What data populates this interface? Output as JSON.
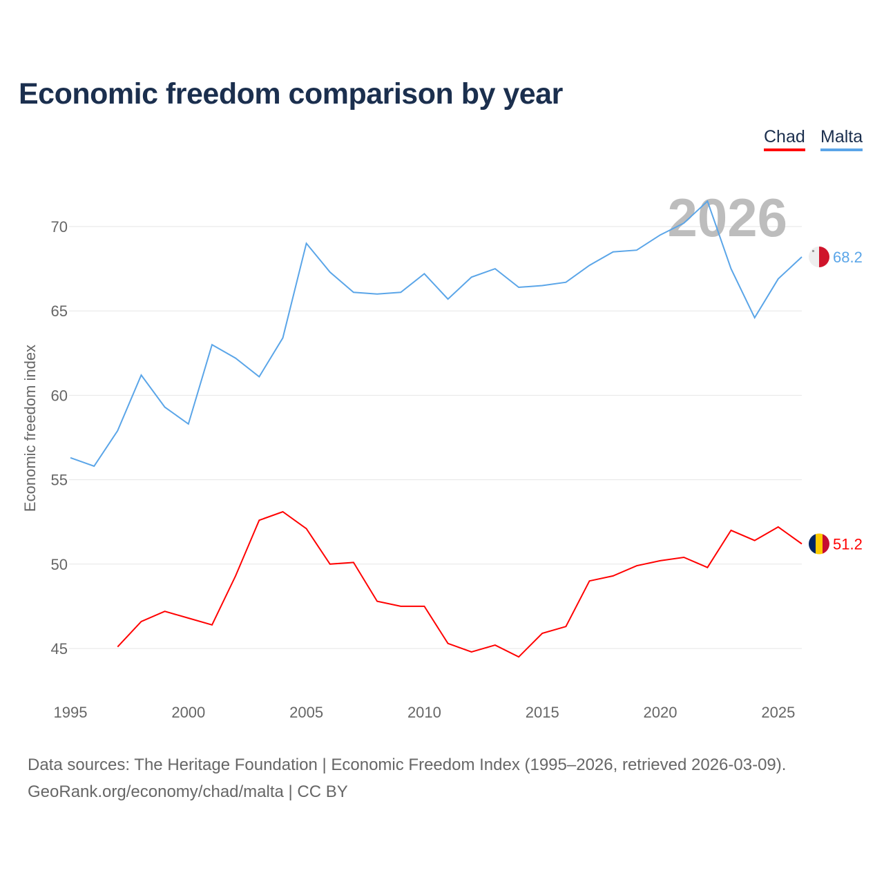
{
  "title": "Economic freedom comparison by year",
  "footer": {
    "line1": "Data sources: The Heritage Foundation | Economic Freedom Index (1995–2026, retrieved 2026-03-09).",
    "line2": "GeoRank.org/economy/chad/malta | CC BY"
  },
  "chart_data": {
    "type": "line",
    "title": "Economic freedom comparison by year",
    "xlabel": "",
    "ylabel": "Economic freedom index",
    "xlim": [
      1995,
      2026
    ],
    "ylim": [
      45,
      70
    ],
    "x_ticks": [
      "1995",
      "2000",
      "2005",
      "2010",
      "2015",
      "2020",
      "2025"
    ],
    "y_ticks": [
      "45",
      "50",
      "55",
      "60",
      "65",
      "70"
    ],
    "year_watermark": "2026",
    "legend_position": "top-right",
    "series": [
      {
        "name": "Chad",
        "color": "#ff0000",
        "end_label": "51.2",
        "flag": "chad-flag",
        "x": [
          1997,
          1998,
          1999,
          2000,
          2001,
          2002,
          2003,
          2004,
          2005,
          2006,
          2007,
          2008,
          2009,
          2010,
          2011,
          2012,
          2013,
          2014,
          2015,
          2016,
          2017,
          2018,
          2019,
          2020,
          2021,
          2022,
          2023,
          2024,
          2025,
          2026
        ],
        "y": [
          45.1,
          46.6,
          47.2,
          46.8,
          46.4,
          49.3,
          52.6,
          53.1,
          52.1,
          50.0,
          50.1,
          47.8,
          47.5,
          47.5,
          45.3,
          44.8,
          45.2,
          44.5,
          45.9,
          46.3,
          49.0,
          49.3,
          49.9,
          50.2,
          50.4,
          49.8,
          52.0,
          51.4,
          52.2,
          51.2
        ]
      },
      {
        "name": "Malta",
        "color": "#5aa5e8",
        "end_label": "68.2",
        "flag": "malta-flag",
        "x": [
          1995,
          1996,
          1997,
          1998,
          1999,
          2000,
          2001,
          2002,
          2003,
          2004,
          2005,
          2006,
          2007,
          2008,
          2009,
          2010,
          2011,
          2012,
          2013,
          2014,
          2015,
          2016,
          2017,
          2018,
          2019,
          2020,
          2021,
          2022,
          2023,
          2024,
          2025,
          2026
        ],
        "y": [
          56.3,
          55.8,
          57.9,
          61.2,
          59.3,
          58.3,
          63.0,
          62.2,
          61.1,
          63.4,
          69.0,
          67.3,
          66.1,
          66.0,
          66.1,
          67.2,
          65.7,
          67.0,
          67.5,
          66.4,
          66.5,
          66.7,
          67.7,
          68.5,
          68.6,
          69.5,
          70.2,
          71.5,
          67.5,
          64.6,
          66.9,
          68.2
        ]
      }
    ]
  }
}
